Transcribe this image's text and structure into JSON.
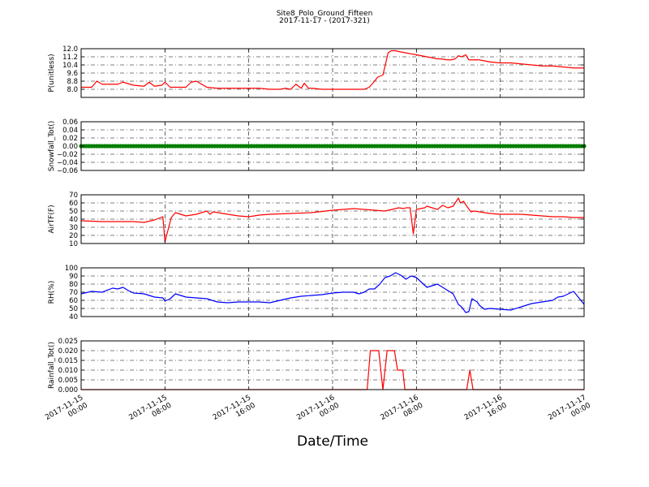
{
  "chart_data": {
    "title": "Site8_Polo_Ground_Fifteen",
    "subtitle": "2017-11-17 - (2017-321)",
    "xlabel": "Date/Time",
    "type": "line",
    "grid": true,
    "x_range": [
      "2017-11-15 00:00",
      "2017-11-17 00:00"
    ],
    "x_ticks": [
      {
        "hours": 0,
        "label": [
          "2017-11-15",
          "00:00"
        ]
      },
      {
        "hours": 8,
        "label": [
          "2017-11-15",
          "08:00"
        ]
      },
      {
        "hours": 16,
        "label": [
          "2017-11-15",
          "16:00"
        ]
      },
      {
        "hours": 24,
        "label": [
          "2017-11-16",
          "00:00"
        ]
      },
      {
        "hours": 32,
        "label": [
          "2017-11-16",
          "08:00"
        ]
      },
      {
        "hours": 40,
        "label": [
          "2017-11-16",
          "16:00"
        ]
      },
      {
        "hours": 48,
        "label": [
          "2017-11-17",
          "00:00"
        ]
      }
    ],
    "panels": [
      {
        "ylabel": "P(unitless)",
        "ylim": [
          7.2,
          12.0
        ],
        "yticks": [
          8.0,
          8.8,
          9.6,
          10.4,
          11.2,
          12.0
        ],
        "ytick_labels": [
          "8.0",
          "8.8",
          "9.6",
          "10.4",
          "11.2",
          "12.0"
        ],
        "color": "#ff0000",
        "series": {
          "x": [
            0,
            1,
            1.5,
            2,
            3,
            3.5,
            4,
            5,
            6,
            6.5,
            7,
            7.7,
            8,
            8.5,
            10,
            10.5,
            11,
            12,
            13,
            15,
            17,
            18,
            19,
            19.5,
            20,
            20.5,
            21,
            21.3,
            21.7,
            22,
            23,
            24,
            25,
            26,
            27,
            27.5,
            28,
            28.3,
            28.8,
            29.3,
            29.6,
            30,
            30.4,
            32,
            33,
            34,
            34.3,
            35,
            35.3,
            35.7,
            36,
            36.3,
            36.7,
            37,
            38,
            39,
            40,
            41,
            42,
            43,
            44,
            45,
            46,
            47,
            48
          ],
          "y": [
            8.2,
            8.2,
            8.8,
            8.5,
            8.5,
            8.5,
            8.7,
            8.4,
            8.3,
            8.7,
            8.3,
            8.4,
            8.7,
            8.2,
            8.2,
            8.7,
            8.8,
            8.2,
            8.1,
            8.1,
            8.1,
            8.0,
            8.0,
            8.1,
            8.0,
            8.5,
            8.1,
            8.6,
            8.1,
            8.1,
            8.0,
            8.0,
            8.0,
            8.0,
            8.0,
            8.2,
            8.8,
            9.2,
            9.4,
            11.6,
            11.8,
            11.8,
            11.7,
            11.4,
            11.2,
            11.0,
            11.0,
            10.9,
            10.9,
            11.0,
            11.3,
            11.2,
            11.4,
            10.9,
            10.9,
            10.7,
            10.6,
            10.6,
            10.5,
            10.4,
            10.3,
            10.3,
            10.2,
            10.1,
            10.1
          ]
        }
      },
      {
        "ylabel": "Snowfall_Tot()",
        "ylim": [
          -0.06,
          0.06
        ],
        "yticks": [
          -0.06,
          -0.04,
          -0.02,
          0.0,
          0.02,
          0.04,
          0.06
        ],
        "ytick_labels": [
          "−0.06",
          "−0.04",
          "−0.02",
          "0.00",
          "0.02",
          "0.04",
          "0.06"
        ],
        "color": "#008000",
        "series": {
          "x": [
            0,
            48
          ],
          "y": [
            0,
            0
          ]
        }
      },
      {
        "ylabel": "AirTF(F)",
        "ylim": [
          10,
          70
        ],
        "yticks": [
          10,
          20,
          30,
          40,
          50,
          60,
          70
        ],
        "ytick_labels": [
          "10",
          "20",
          "30",
          "40",
          "50",
          "60",
          "70"
        ],
        "color": "#ff0000",
        "series": {
          "x": [
            0,
            2,
            4,
            5,
            6,
            7,
            7.6,
            7.8,
            8,
            8.6,
            9,
            10,
            11,
            12,
            12.3,
            12.6,
            14,
            15,
            16,
            17,
            18,
            20,
            22,
            24,
            26,
            27,
            29,
            30,
            30.3,
            30.8,
            31,
            31.4,
            31.7,
            32,
            32.8,
            33,
            34,
            34.5,
            35,
            35.5,
            36,
            36.2,
            36.5,
            36.8,
            37.2,
            37.5,
            38,
            39,
            40,
            41,
            42,
            43,
            44,
            45,
            46,
            47,
            48
          ],
          "y": [
            38,
            37,
            37,
            37,
            36,
            39,
            42,
            43,
            12,
            42,
            48,
            44,
            46,
            50,
            46,
            49,
            46,
            44,
            43,
            45,
            46,
            47,
            48,
            51,
            53,
            52,
            50,
            53,
            54,
            53,
            54,
            54,
            22,
            52,
            54,
            56,
            52,
            57,
            54,
            56,
            66,
            60,
            62,
            56,
            49,
            50,
            49,
            47,
            46,
            46,
            46,
            45,
            44,
            43,
            43,
            42,
            42
          ]
        }
      },
      {
        "ylabel": "RH(%)",
        "ylim": [
          40,
          100
        ],
        "yticks": [
          40,
          50,
          60,
          70,
          80,
          90,
          100
        ],
        "ytick_labels": [
          "40",
          "50",
          "60",
          "70",
          "80",
          "90",
          "100"
        ],
        "color": "#0000ff",
        "series": {
          "x": [
            0,
            1,
            2,
            3,
            3.5,
            4,
            4.5,
            5,
            6,
            7,
            7.8,
            8,
            8.5,
            9,
            9.5,
            10,
            11,
            12,
            13,
            14,
            15,
            16,
            17,
            18,
            19,
            20,
            21,
            22,
            23,
            24,
            25,
            26,
            26.5,
            27,
            27.5,
            28,
            28.5,
            29,
            29.5,
            30,
            30.5,
            31,
            31.5,
            32,
            32.5,
            33,
            34,
            34.5,
            35,
            35.5,
            36,
            36.3,
            36.7,
            37,
            37.3,
            37.8,
            38,
            38.5,
            39,
            40,
            41,
            42,
            43,
            44,
            45,
            45.5,
            46,
            47,
            48
          ],
          "y": [
            68,
            71,
            70,
            75,
            74,
            76,
            72,
            69,
            68,
            64,
            63,
            59,
            62,
            68,
            66,
            64,
            63,
            62,
            58,
            57,
            58,
            58,
            58,
            57,
            60,
            63,
            65,
            66,
            67,
            69,
            70,
            70,
            68,
            70,
            74,
            74,
            80,
            88,
            90,
            94,
            91,
            86,
            90,
            88,
            82,
            76,
            80,
            76,
            72,
            68,
            55,
            52,
            45,
            46,
            62,
            58,
            54,
            49,
            50,
            49,
            48,
            52,
            56,
            58,
            60,
            64,
            65,
            71,
            55
          ]
        }
      },
      {
        "ylabel": "Rainfall_Tot()",
        "ylim": [
          0.0,
          0.025
        ],
        "yticks": [
          0.0,
          0.005,
          0.01,
          0.015,
          0.02,
          0.025
        ],
        "ytick_labels": [
          "0.000",
          "0.005",
          "0.010",
          "0.015",
          "0.020",
          "0.025"
        ],
        "color": "#ff0000",
        "series": {
          "x": [
            0,
            27.3,
            27.6,
            28.4,
            28.8,
            29.2,
            29.9,
            30.2,
            30.7,
            30.9,
            31.3,
            36.8,
            37.1,
            37.4,
            48
          ],
          "y": [
            0,
            0,
            0.02,
            0.02,
            0.0,
            0.02,
            0.02,
            0.01,
            0.01,
            0.0,
            0.0,
            0.0,
            0.01,
            0.0,
            0
          ]
        }
      }
    ]
  }
}
